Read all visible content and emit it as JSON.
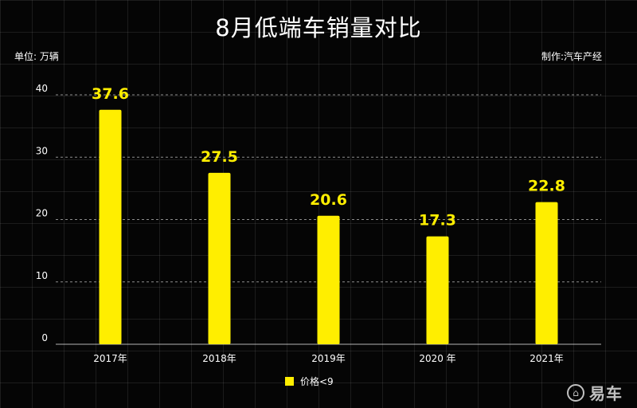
{
  "header": {
    "title": "8月低端车销量对比",
    "unit_label": "单位: 万辆",
    "credit": "制作:汽车产经"
  },
  "legend": {
    "label": "价格<9"
  },
  "watermark": {
    "text": "易车",
    "logo_icon": "yiche-logo-icon"
  },
  "colors": {
    "bar": "#ffee00",
    "label": "#ffee00",
    "background": "#000000"
  },
  "chart_data": {
    "type": "bar",
    "title": "8月低端车销量对比",
    "ylabel": "单位: 万辆",
    "categories": [
      "2017年",
      "2018年",
      "2019年",
      "2020 年",
      "2021年"
    ],
    "series": [
      {
        "name": "价格<9",
        "values": [
          37.6,
          27.5,
          20.6,
          17.3,
          22.8
        ]
      }
    ],
    "value_labels": [
      "37.6",
      "27.5",
      "20.6",
      "17.3",
      "22.8"
    ],
    "yticks": [
      "0",
      "10",
      "20",
      "30",
      "40"
    ],
    "ylim": [
      0,
      40
    ],
    "grid": true,
    "legend_position": "bottom-center"
  }
}
